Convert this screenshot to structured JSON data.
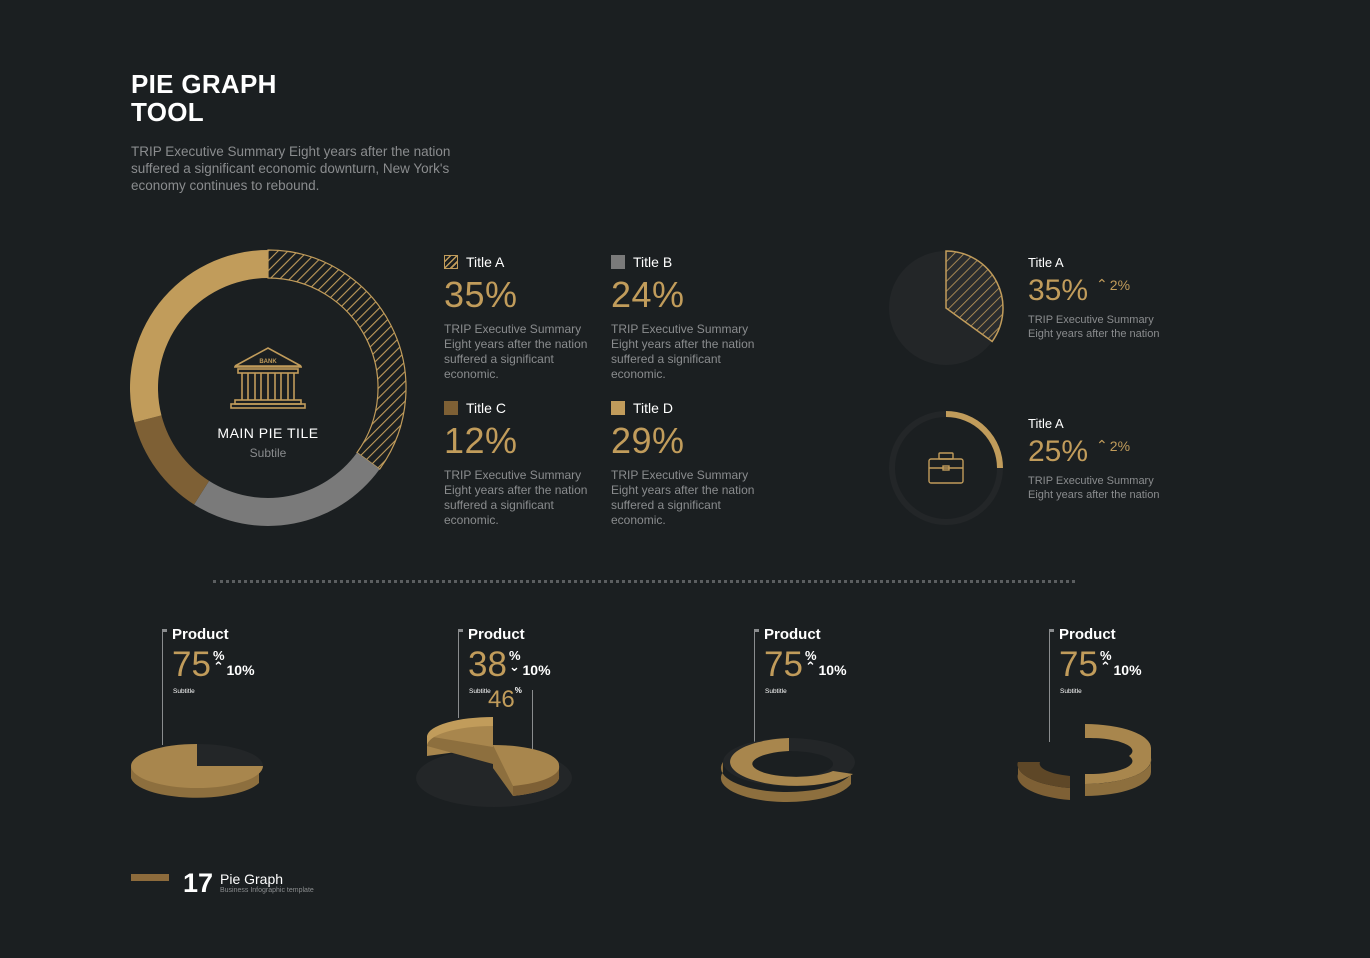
{
  "header": {
    "title_line1": "PIE GRAPH",
    "title_line2": "TOOL",
    "description": "TRIP Executive Summary Eight years after the nation suffered a significant economic downturn, New York's economy continues to rebound."
  },
  "colors": {
    "background": "#1b1f21",
    "gold": "#c19c5b",
    "brown": "#7e6035",
    "gray": "#7a7a7a",
    "dark": "#2a2c2e"
  },
  "main_pie": {
    "icon": "bank-icon",
    "icon_text": "BANK",
    "title": "MAIN PIE TILE",
    "subtitle": "Subtile"
  },
  "legend": [
    {
      "title": "Title A",
      "value": "35%",
      "desc": "TRIP Executive Summary Eight years after the nation suffered a significant economic.",
      "swatch": "hatch"
    },
    {
      "title": "Title B",
      "value": "24%",
      "desc": "TRIP Executive Summary Eight years after the nation suffered a significant economic.",
      "swatch": "#7a7a7a"
    },
    {
      "title": "Title C",
      "value": "12%",
      "desc": "TRIP Executive Summary Eight years after the nation suffered a significant economic.",
      "swatch": "#7e6035"
    },
    {
      "title": "Title D",
      "value": "29%",
      "desc": "TRIP Executive Summary Eight years after the nation suffered a significant economic.",
      "swatch": "#c19c5b"
    }
  ],
  "mini_charts": [
    {
      "title": "Title A",
      "value": "35%",
      "change": "2%",
      "desc": "TRIP Executive Summary Eight years after the nation",
      "icon": ""
    },
    {
      "title": "Title A",
      "value": "25%",
      "change": "2%",
      "desc": "TRIP Executive Summary Eight years after the nation",
      "icon": "briefcase-icon"
    }
  ],
  "products": [
    {
      "label": "Product",
      "value": "75",
      "symbol": "%",
      "change": "10%",
      "direction": "up",
      "subtitle": "Subtitle"
    },
    {
      "label": "Product",
      "value": "38",
      "symbol": "%",
      "change": "10%",
      "direction": "down",
      "subtitle": "Subtitle",
      "extra_value": "46",
      "extra_symbol": "%"
    },
    {
      "label": "Product",
      "value": "75",
      "symbol": "%",
      "change": "10%",
      "direction": "up",
      "subtitle": "Subtitle"
    },
    {
      "label": "Product",
      "value": "75",
      "symbol": "%",
      "change": "10%",
      "direction": "up",
      "subtitle": "Subtitle"
    }
  ],
  "footer": {
    "page_number": "17",
    "title": "Pie Graph",
    "subtitle": "Business Infographic template"
  },
  "chart_data": [
    {
      "type": "pie",
      "variant": "donut",
      "title": "MAIN PIE TILE",
      "categories": [
        "Title A",
        "Title B",
        "Title C",
        "Title D"
      ],
      "values": [
        35,
        24,
        12,
        29
      ],
      "colors": [
        "hatch",
        "#7a7a7a",
        "#7e6035",
        "#c19c5b"
      ]
    },
    {
      "type": "pie",
      "categories": [
        "Title A"
      ],
      "values": [
        35
      ]
    },
    {
      "type": "pie",
      "variant": "donut",
      "categories": [
        "Title A"
      ],
      "values": [
        25
      ]
    },
    {
      "type": "pie",
      "variant": "3d",
      "categories": [
        "Product"
      ],
      "values": [
        75
      ]
    },
    {
      "type": "pie",
      "variant": "3d-exploded",
      "categories": [
        "Product",
        "Product"
      ],
      "values": [
        38,
        46
      ]
    },
    {
      "type": "pie",
      "variant": "3d-donut",
      "categories": [
        "Product"
      ],
      "values": [
        75
      ]
    },
    {
      "type": "pie",
      "variant": "3d-donut",
      "categories": [
        "Product"
      ],
      "values": [
        75
      ]
    }
  ]
}
